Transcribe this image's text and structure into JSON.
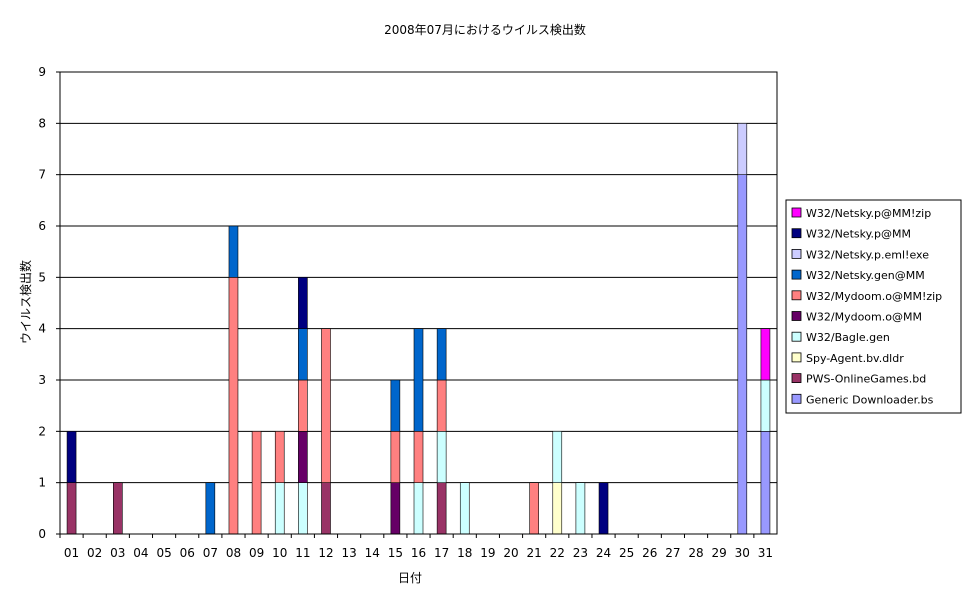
{
  "chart_data": {
    "type": "bar",
    "stacked": true,
    "title": "2008年07月におけるウイルス検出数",
    "xlabel": "日付",
    "ylabel": "ウイルス検出数",
    "ylim": [
      0,
      9
    ],
    "yticks": [
      0,
      1,
      2,
      3,
      4,
      5,
      6,
      7,
      8,
      9
    ],
    "grid": true,
    "legend_position": "right",
    "categories": [
      "01",
      "02",
      "03",
      "04",
      "05",
      "06",
      "07",
      "08",
      "09",
      "10",
      "11",
      "12",
      "13",
      "14",
      "15",
      "16",
      "17",
      "18",
      "19",
      "20",
      "21",
      "22",
      "23",
      "24",
      "25",
      "26",
      "27",
      "28",
      "29",
      "30",
      "31"
    ],
    "series": [
      {
        "name": "Generic Downloader.bs",
        "color": "#9999ff",
        "values": [
          0,
          0,
          0,
          0,
          0,
          0,
          0,
          0,
          0,
          0,
          0,
          0,
          0,
          0,
          0,
          0,
          0,
          0,
          0,
          0,
          0,
          0,
          0,
          0,
          0,
          0,
          0,
          0,
          0,
          7,
          2
        ]
      },
      {
        "name": "PWS-OnlineGames.bd",
        "color": "#993366",
        "values": [
          1,
          0,
          1,
          0,
          0,
          0,
          0,
          0,
          0,
          0,
          0,
          1,
          0,
          0,
          0,
          0,
          1,
          0,
          0,
          0,
          0,
          0,
          0,
          0,
          0,
          0,
          0,
          0,
          0,
          0,
          0
        ]
      },
      {
        "name": "Spy-Agent.bv.dldr",
        "color": "#ffffcc",
        "values": [
          0,
          0,
          0,
          0,
          0,
          0,
          0,
          0,
          0,
          0,
          0,
          0,
          0,
          0,
          0,
          0,
          0,
          0,
          0,
          0,
          0,
          1,
          0,
          0,
          0,
          0,
          0,
          0,
          0,
          0,
          0
        ]
      },
      {
        "name": "W32/Bagle.gen",
        "color": "#ccffff",
        "values": [
          0,
          0,
          0,
          0,
          0,
          0,
          0,
          0,
          0,
          1,
          1,
          0,
          0,
          0,
          0,
          1,
          1,
          1,
          0,
          0,
          0,
          1,
          1,
          0,
          0,
          0,
          0,
          0,
          0,
          0,
          1
        ]
      },
      {
        "name": "W32/Mydoom.o@MM",
        "color": "#660066",
        "values": [
          0,
          0,
          0,
          0,
          0,
          0,
          0,
          0,
          0,
          0,
          1,
          0,
          0,
          0,
          1,
          0,
          0,
          0,
          0,
          0,
          0,
          0,
          0,
          0,
          0,
          0,
          0,
          0,
          0,
          0,
          0
        ]
      },
      {
        "name": "W32/Mydoom.o@MM!zip",
        "color": "#ff8080",
        "values": [
          0,
          0,
          0,
          0,
          0,
          0,
          0,
          5,
          2,
          1,
          1,
          3,
          0,
          0,
          1,
          1,
          1,
          0,
          0,
          0,
          1,
          0,
          0,
          0,
          0,
          0,
          0,
          0,
          0,
          0,
          0
        ]
      },
      {
        "name": "W32/Netsky.gen@MM",
        "color": "#0066cc",
        "values": [
          0,
          0,
          0,
          0,
          0,
          0,
          1,
          1,
          0,
          0,
          1,
          0,
          0,
          0,
          1,
          2,
          1,
          0,
          0,
          0,
          0,
          0,
          0,
          0,
          0,
          0,
          0,
          0,
          0,
          0,
          0
        ]
      },
      {
        "name": "W32/Netsky.p.eml!exe",
        "color": "#ccccff",
        "values": [
          0,
          0,
          0,
          0,
          0,
          0,
          0,
          0,
          0,
          0,
          0,
          0,
          0,
          0,
          0,
          0,
          0,
          0,
          0,
          0,
          0,
          0,
          0,
          0,
          0,
          0,
          0,
          0,
          0,
          1,
          0
        ]
      },
      {
        "name": "W32/Netsky.p@MM",
        "color": "#000080",
        "values": [
          1,
          0,
          0,
          0,
          0,
          0,
          0,
          0,
          0,
          0,
          1,
          0,
          0,
          0,
          0,
          0,
          0,
          0,
          0,
          0,
          0,
          0,
          0,
          1,
          0,
          0,
          0,
          0,
          0,
          0,
          0
        ]
      },
      {
        "name": "W32/Netsky.p@MM!zip",
        "color": "#ff00ff",
        "values": [
          0,
          0,
          0,
          0,
          0,
          0,
          0,
          0,
          0,
          0,
          0,
          0,
          0,
          0,
          0,
          0,
          0,
          0,
          0,
          0,
          0,
          0,
          0,
          0,
          0,
          0,
          0,
          0,
          0,
          0,
          1
        ]
      }
    ]
  }
}
